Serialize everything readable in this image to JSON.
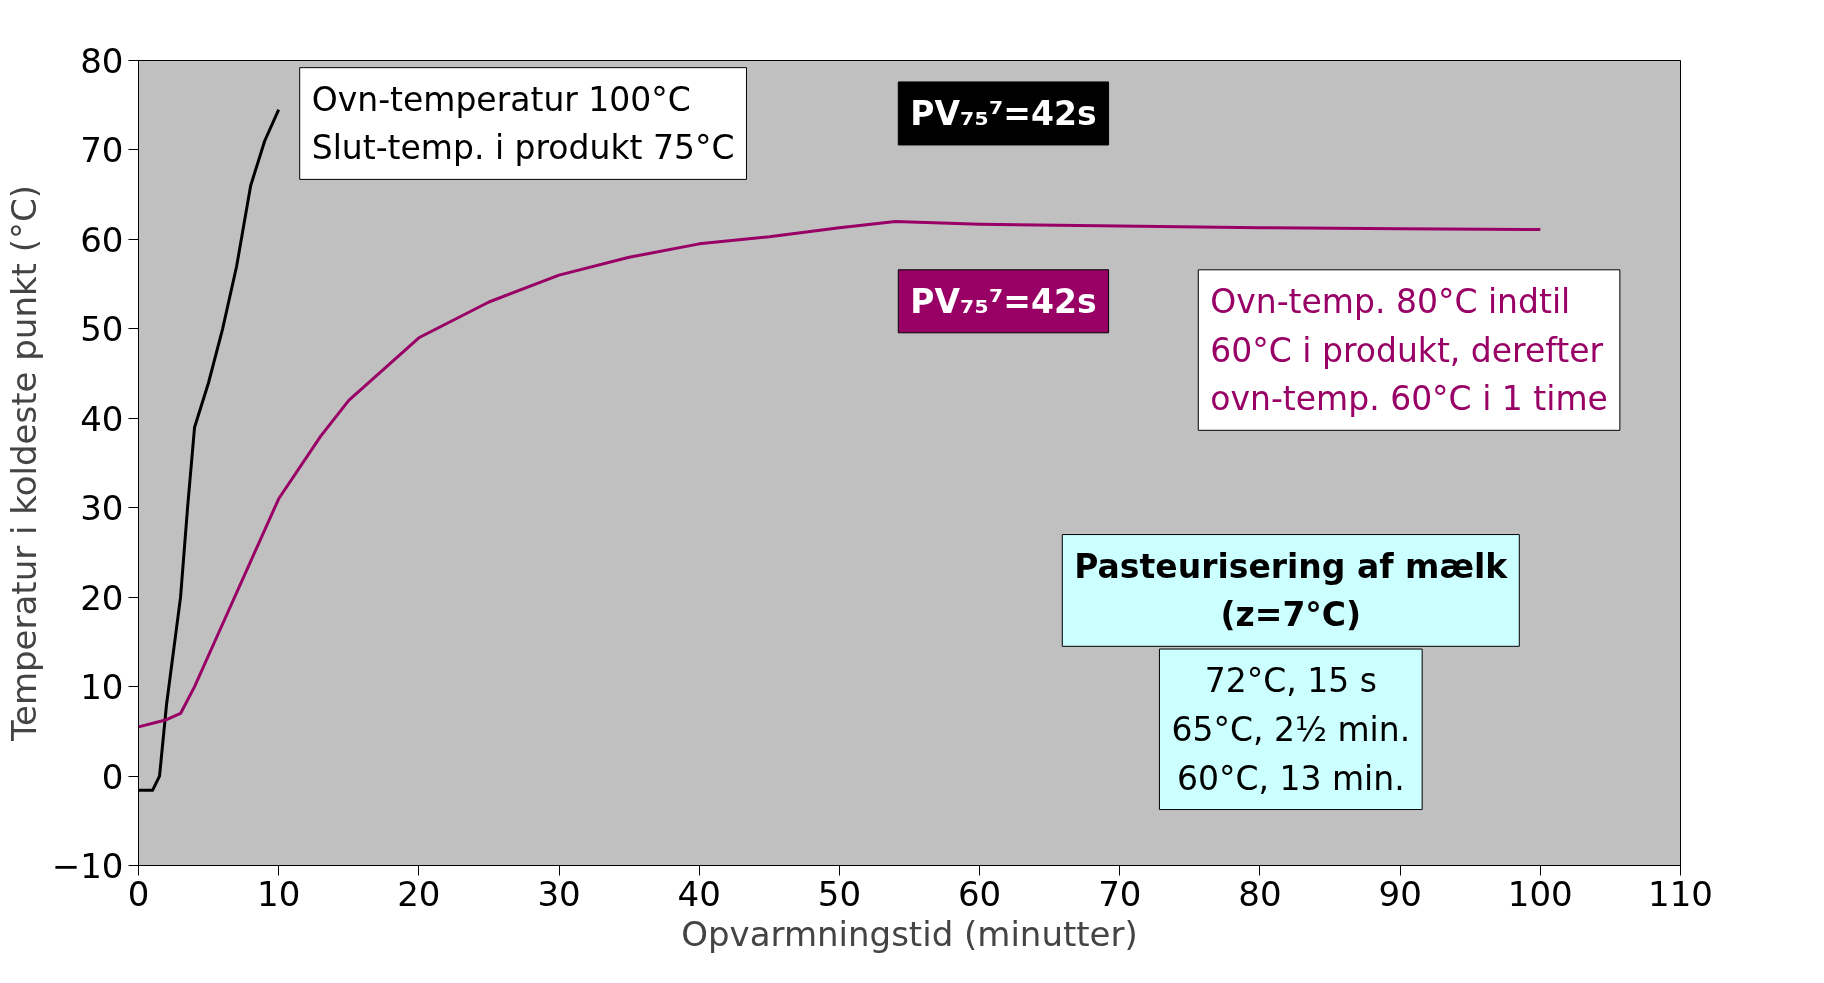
{
  "chart_data": {
    "type": "line",
    "xlabel": "Opvarmningstid (minutter)",
    "ylabel": "Temperatur i koldeste punkt (°C)",
    "xlim": [
      0,
      110
    ],
    "xticks": [
      0,
      10,
      20,
      30,
      40,
      50,
      60,
      70,
      80,
      90,
      100,
      110
    ],
    "ylim": [
      -10,
      80
    ],
    "yticks": [
      -10,
      0,
      10,
      20,
      30,
      40,
      50,
      60,
      70,
      80
    ],
    "grid": false,
    "marker": "none",
    "line_style": "solid",
    "series": [
      {
        "color": "#000000",
        "x": [
          0,
          1,
          1.5,
          2,
          3,
          3.5,
          4,
          5,
          6,
          7,
          8,
          9,
          10
        ],
        "values": [
          -1.6,
          -1.6,
          0,
          8,
          20,
          30,
          39,
          44,
          50,
          57,
          66,
          71,
          74.5
        ]
      },
      {
        "color": "#990066",
        "x": [
          0,
          2,
          3,
          4,
          6,
          8,
          10,
          13,
          15,
          20,
          25,
          30,
          35,
          40,
          45,
          50,
          54,
          60,
          70,
          80,
          90,
          100
        ],
        "values": [
          5.5,
          6.3,
          7,
          10,
          17,
          24,
          31,
          38,
          42,
          49,
          53,
          56,
          58,
          59.5,
          60.3,
          61.3,
          62,
          61.7,
          61.5,
          61.3,
          61.2,
          61.1
        ]
      }
    ],
    "annotations": [
      "Ovn-temperatur 100°C\nSlut-temp. i produkt 75°C",
      "PV₇₅⁷=42s",
      "PV₇₅⁷=42s",
      "Ovn-temp. 80°C indtil\n60°C i produkt, derefter\novn-temp. 60°C i 1 time",
      "Pasteurisering af mælk\n(z=7°C)",
      "72°C, 15 s\n65°C, 2½ min.\n60°C, 13 min."
    ]
  }
}
